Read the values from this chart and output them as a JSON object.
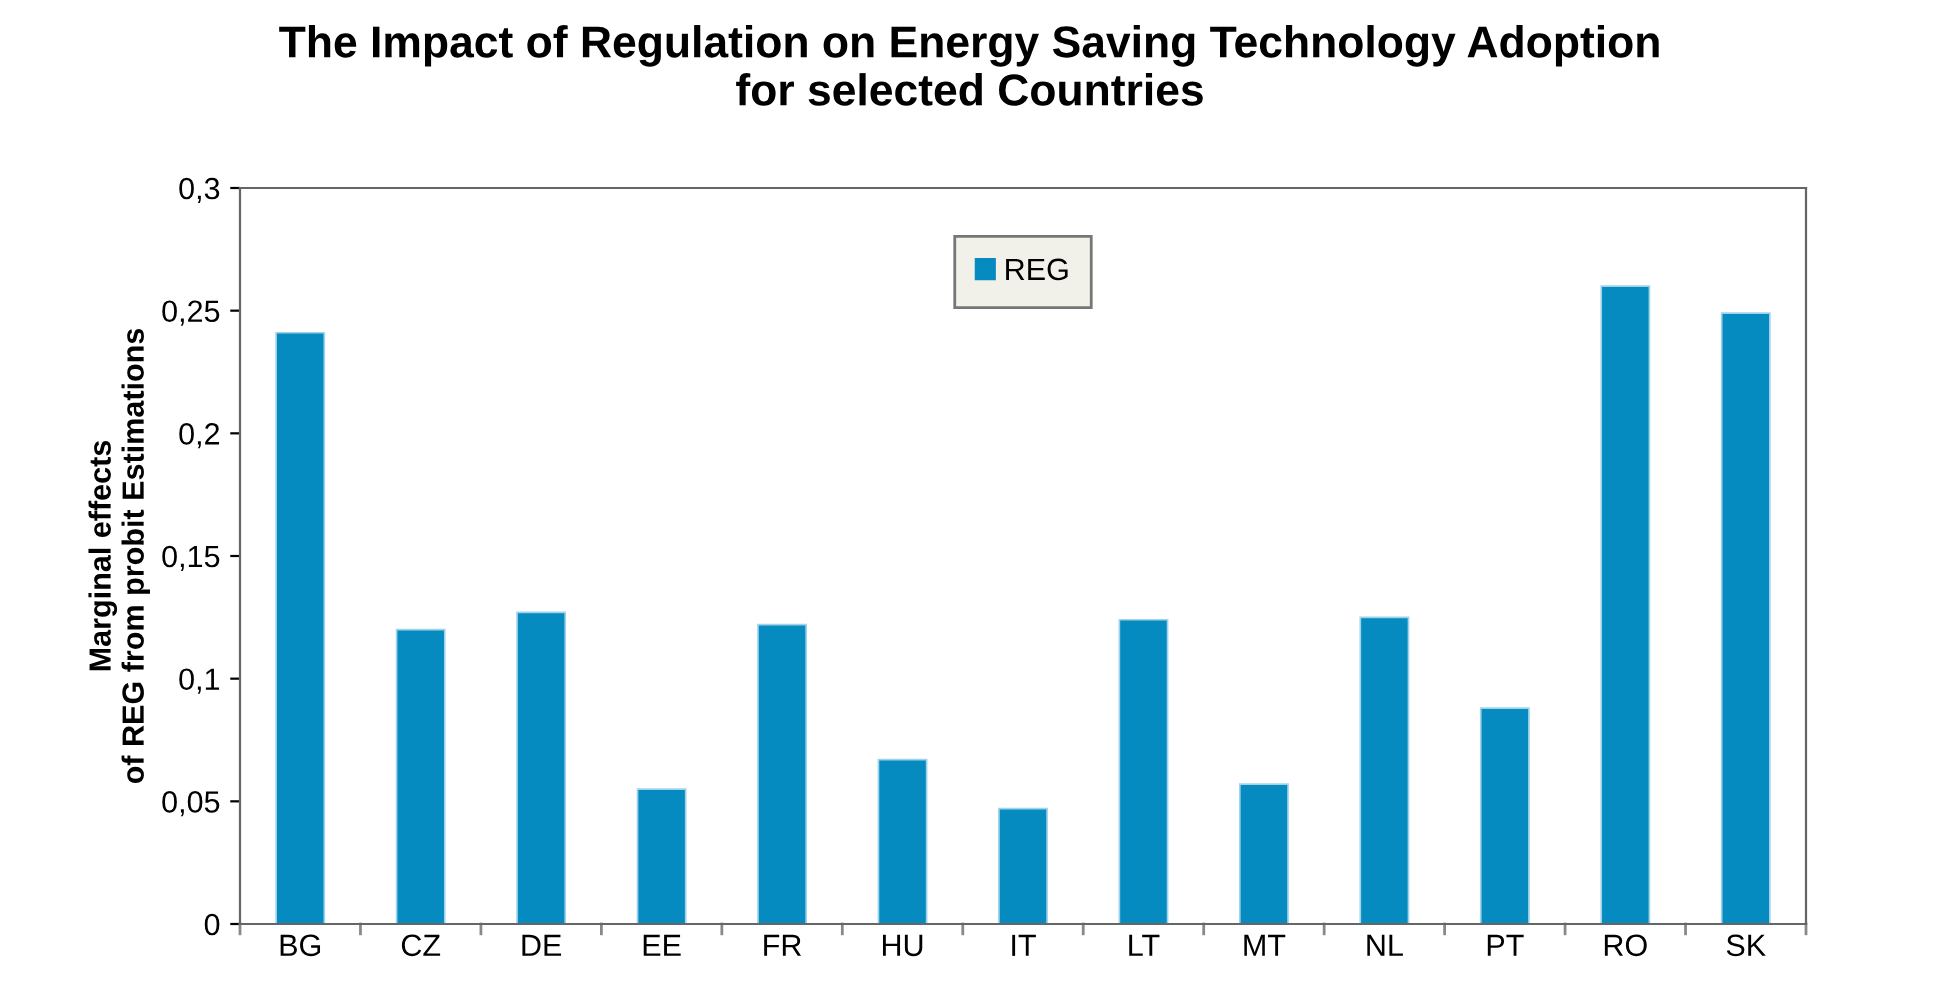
{
  "chart_data": {
    "type": "bar",
    "title": "The Impact of Regulation on Energy Saving Technology Adoption\nfor selected Countries",
    "ylabel": "Marginal effects\nof REG from probit Estimations",
    "categories": [
      "BG",
      "CZ",
      "DE",
      "EE",
      "FR",
      "HU",
      "IT",
      "LT",
      "MT",
      "NL",
      "PT",
      "RO",
      "SK"
    ],
    "series": [
      {
        "name": "REG",
        "color": "#058bbf",
        "values": [
          0.241,
          0.12,
          0.127,
          0.055,
          0.122,
          0.067,
          0.047,
          0.124,
          0.057,
          0.125,
          0.088,
          0.26,
          0.249
        ]
      }
    ],
    "ylim": [
      0,
      0.3
    ],
    "yticks": [
      {
        "value": 0,
        "label": "0"
      },
      {
        "value": 0.05,
        "label": "0,05"
      },
      {
        "value": 0.1,
        "label": "0,1"
      },
      {
        "value": 0.15,
        "label": "0,15"
      },
      {
        "value": 0.2,
        "label": "0,2"
      },
      {
        "value": 0.25,
        "label": "0,25"
      },
      {
        "value": 0.3,
        "label": "0,3"
      }
    ],
    "legend": "top center",
    "grid": false
  }
}
